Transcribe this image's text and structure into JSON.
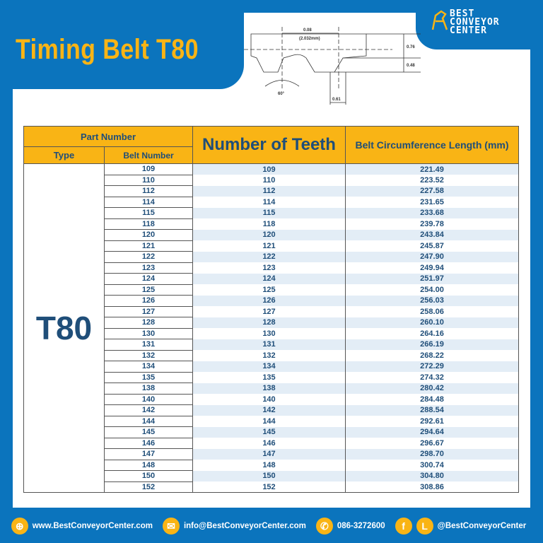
{
  "title": "Timing Belt T80",
  "logo": {
    "lines": [
      "BEST",
      "CONVEYOR",
      "CENTER"
    ]
  },
  "diagram": {
    "pitch": "0.08",
    "pitch_mm": "(2.032mm)",
    "h1": "0.76",
    "h2": "0.48",
    "w": "0.61",
    "angle": "60°"
  },
  "table": {
    "header_part": "Part Number",
    "header_type": "Type",
    "header_belt": "Belt Number",
    "header_teeth": "Number of Teeth",
    "header_length": "Belt Circumference Length (mm)",
    "type": "T80",
    "rows": [
      [
        "109",
        "109",
        "221.49"
      ],
      [
        "110",
        "110",
        "223.52"
      ],
      [
        "112",
        "112",
        "227.58"
      ],
      [
        "114",
        "114",
        "231.65"
      ],
      [
        "115",
        "115",
        "233.68"
      ],
      [
        "118",
        "118",
        "239.78"
      ],
      [
        "120",
        "120",
        "243.84"
      ],
      [
        "121",
        "121",
        "245.87"
      ],
      [
        "122",
        "122",
        "247.90"
      ],
      [
        "123",
        "123",
        "249.94"
      ],
      [
        "124",
        "124",
        "251.97"
      ],
      [
        "125",
        "125",
        "254.00"
      ],
      [
        "126",
        "126",
        "256.03"
      ],
      [
        "127",
        "127",
        "258.06"
      ],
      [
        "128",
        "128",
        "260.10"
      ],
      [
        "130",
        "130",
        "264.16"
      ],
      [
        "131",
        "131",
        "266.19"
      ],
      [
        "132",
        "132",
        "268.22"
      ],
      [
        "134",
        "134",
        "272.29"
      ],
      [
        "135",
        "135",
        "274.32"
      ],
      [
        "138",
        "138",
        "280.42"
      ],
      [
        "140",
        "140",
        "284.48"
      ],
      [
        "142",
        "142",
        "288.54"
      ],
      [
        "144",
        "144",
        "292.61"
      ],
      [
        "145",
        "145",
        "294.64"
      ],
      [
        "146",
        "146",
        "296.67"
      ],
      [
        "147",
        "147",
        "298.70"
      ],
      [
        "148",
        "148",
        "300.74"
      ],
      [
        "150",
        "150",
        "304.80"
      ],
      [
        "152",
        "152",
        "308.86"
      ]
    ]
  },
  "footer": {
    "website": "www.BestConveyorCenter.com",
    "email": "info@BestConveyorCenter.com",
    "phone": "086-3272600",
    "social": "@BestConveyorCenter"
  },
  "colors": {
    "blue": "#0b74bd",
    "yellow": "#f9b415",
    "text": "#1f4e79"
  }
}
